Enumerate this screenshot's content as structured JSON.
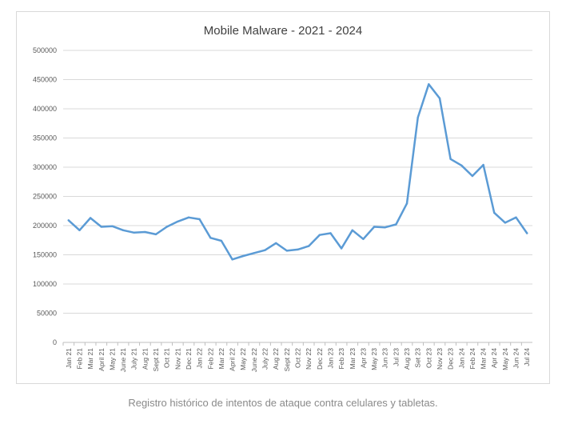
{
  "chart_data": {
    "type": "line",
    "title": "Mobile Malware - 2021 - 2024",
    "xlabel": "",
    "ylabel": "",
    "ylim": [
      0,
      500000
    ],
    "yticks": [
      "0",
      "50000",
      "100000",
      "150000",
      "200000",
      "250000",
      "300000",
      "350000",
      "400000",
      "450000",
      "500000"
    ],
    "grid": true,
    "line_color": "#5b9bd5",
    "categories": [
      "Jan 21",
      "Feb 21",
      "Mar 21",
      "April 21",
      "May 21",
      "June 21",
      "July 21",
      "Aug 21",
      "Sept 21",
      "Oct 21",
      "Nov 21",
      "Dec 21",
      "Jan 22",
      "Feb 22",
      "Mar 22",
      "April 22",
      "May 22",
      "June 22",
      "July 22",
      "Aug 22",
      "Sept 22",
      "Oct 22",
      "Nov 22",
      "Dec 22",
      "Jan 23",
      "Feb 23",
      "Mar 23",
      "Apr 23",
      "May 23",
      "Jun 23",
      "Jul 23",
      "Aug 23",
      "Set 23",
      "Oct 23",
      "Nov 23",
      "Dec 23",
      "Jan 24",
      "Feb 24",
      "Mar 24",
      "Apr 24",
      "May 24",
      "Jun 24",
      "Jul 24"
    ],
    "values": [
      209000,
      192000,
      213000,
      198000,
      199000,
      192000,
      188000,
      189000,
      185000,
      198000,
      207000,
      214000,
      211000,
      179000,
      174000,
      142000,
      148000,
      153000,
      158000,
      170000,
      157000,
      159000,
      165000,
      184000,
      187000,
      161000,
      192000,
      177000,
      198000,
      197000,
      202000,
      238000,
      385000,
      442000,
      418000,
      314000,
      303000,
      285000,
      304000,
      222000,
      205000,
      214000,
      187000
    ]
  },
  "caption": "Registro histórico de intentos de ataque contra celulares y tabletas."
}
